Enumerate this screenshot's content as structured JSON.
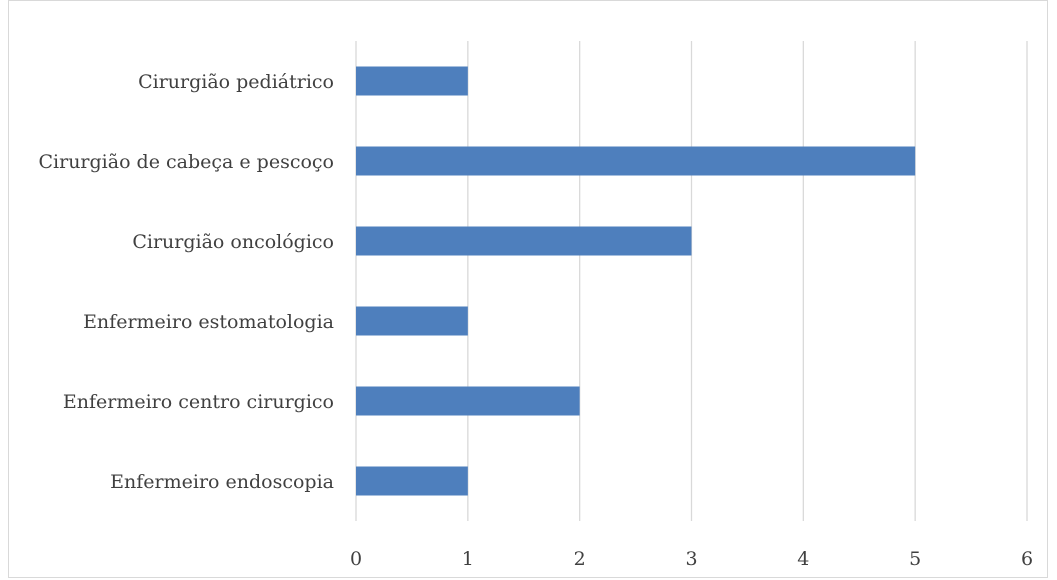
{
  "chart_data": {
    "type": "bar",
    "orientation": "horizontal",
    "categories": [
      "Cirurgião pediátrico",
      "Cirurgião de cabeça e pescoço",
      "Cirurgião oncológico",
      "Enfermeiro estomatologia",
      "Enfermeiro centro cirurgico",
      "Enfermeiro endoscopia"
    ],
    "values": [
      1,
      5,
      3,
      1,
      2,
      1
    ],
    "xlim": [
      0,
      6
    ],
    "xticks": [
      "0",
      "1",
      "2",
      "3",
      "4",
      "5",
      "6"
    ],
    "grid": true,
    "legend": "none",
    "colors": {
      "bar": "#4e7fbd",
      "grid": "#d9d9d9",
      "text": "#404040",
      "border": "#d9d9d9"
    }
  }
}
